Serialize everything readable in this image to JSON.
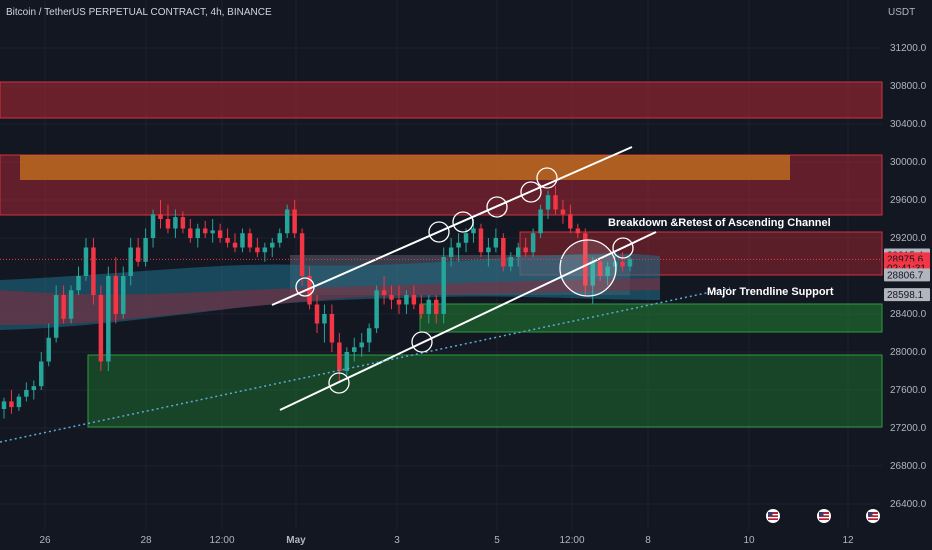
{
  "header": {
    "title": "Bitcoin / TetherUS PERPETUAL CONTRACT, 4h, BINANCE",
    "currency": "USDT"
  },
  "price_axis": {
    "ticks": [
      "31200.0",
      "30800.0",
      "30400.0",
      "30000.0",
      "29600.0",
      "29200.0",
      "28400.0",
      "28000.0",
      "27600.0",
      "27200.0",
      "26800.0",
      "26400.0"
    ]
  },
  "time_axis": {
    "ticks": [
      "26",
      "28",
      "12:00",
      "May",
      "3",
      "5",
      "12:00",
      "8",
      "10",
      "12"
    ]
  },
  "price_tags": [
    {
      "label": "29015.4",
      "value": 29015.4,
      "color": "#b2b5be"
    },
    {
      "label": "28975.6",
      "value": 28975.6,
      "color": "#f23645"
    },
    {
      "label": "02:41:31",
      "value": 28880,
      "color": "#f23645"
    },
    {
      "label": "28806.7",
      "value": 28806.7,
      "color": "#b2b5be"
    },
    {
      "label": "28598.1",
      "value": 28598.1,
      "color": "#b2b5be"
    }
  ],
  "annotations": {
    "channel_text": "Breakdown &Retest of Ascending Channel",
    "trendline_text": "Major Trendline Support"
  },
  "colors": {
    "background": "#131722",
    "up": "#26a69a",
    "down": "#f23645",
    "resistance_zone": "#b22833",
    "orange_zone": "#c8741e",
    "support_zone": "#1e6b2e",
    "channel_line": "#ffffff",
    "ribbon": "#1f6f8b"
  },
  "chart_data": {
    "type": "candlestick",
    "title": "Bitcoin / TetherUS PERPETUAL CONTRACT, 4h, BINANCE",
    "ylabel": "USDT",
    "ylim": [
      26200,
      31600
    ],
    "candles": [
      [
        27400,
        27520,
        27300,
        27480
      ],
      [
        27480,
        27600,
        27350,
        27420
      ],
      [
        27420,
        27560,
        27380,
        27530
      ],
      [
        27530,
        27680,
        27480,
        27600
      ],
      [
        27600,
        27700,
        27500,
        27640
      ],
      [
        27640,
        28000,
        27600,
        27900
      ],
      [
        27900,
        28300,
        27850,
        28150
      ],
      [
        28150,
        28700,
        28100,
        28600
      ],
      [
        28600,
        28700,
        28300,
        28350
      ],
      [
        28350,
        28700,
        28300,
        28650
      ],
      [
        28650,
        28900,
        28600,
        28800
      ],
      [
        28800,
        29200,
        28750,
        29100
      ],
      [
        29100,
        29200,
        28500,
        28600
      ],
      [
        28600,
        28700,
        27800,
        27900
      ],
      [
        27900,
        28900,
        27800,
        28800
      ],
      [
        28800,
        29000,
        28300,
        28400
      ],
      [
        28400,
        28900,
        28350,
        28800
      ],
      [
        28800,
        29200,
        28700,
        29100
      ],
      [
        29100,
        29200,
        28900,
        28950
      ],
      [
        28950,
        29300,
        28900,
        29200
      ],
      [
        29200,
        29500,
        29100,
        29450
      ],
      [
        29450,
        29600,
        29300,
        29400
      ],
      [
        29400,
        29550,
        29250,
        29300
      ],
      [
        29300,
        29500,
        29200,
        29420
      ],
      [
        29420,
        29480,
        29250,
        29300
      ],
      [
        29300,
        29400,
        29150,
        29200
      ],
      [
        29200,
        29350,
        29100,
        29300
      ],
      [
        29300,
        29380,
        29200,
        29250
      ],
      [
        29250,
        29400,
        29150,
        29280
      ],
      [
        29280,
        29350,
        29150,
        29200
      ],
      [
        29200,
        29300,
        29100,
        29150
      ],
      [
        29150,
        29250,
        29050,
        29100
      ],
      [
        29100,
        29300,
        29050,
        29250
      ],
      [
        29250,
        29300,
        29050,
        29100
      ],
      [
        29100,
        29200,
        29000,
        29050
      ],
      [
        29050,
        29150,
        28950,
        29100
      ],
      [
        29100,
        29200,
        29000,
        29150
      ],
      [
        29150,
        29300,
        29100,
        29250
      ],
      [
        29250,
        29550,
        29200,
        29500
      ],
      [
        29500,
        29600,
        29200,
        29250
      ],
      [
        29250,
        29300,
        28700,
        28800
      ],
      [
        28800,
        28900,
        28450,
        28500
      ],
      [
        28500,
        28600,
        28200,
        28300
      ],
      [
        28300,
        28500,
        28100,
        28400
      ],
      [
        28400,
        28500,
        28000,
        28100
      ],
      [
        28100,
        28200,
        27700,
        27800
      ],
      [
        27800,
        28050,
        27750,
        28000
      ],
      [
        28000,
        28150,
        27900,
        28050
      ],
      [
        28050,
        28200,
        27950,
        28100
      ],
      [
        28100,
        28300,
        28000,
        28250
      ],
      [
        28250,
        28700,
        28200,
        28650
      ],
      [
        28650,
        28800,
        28500,
        28600
      ],
      [
        28600,
        28700,
        28450,
        28550
      ],
      [
        28550,
        28700,
        28400,
        28500
      ],
      [
        28500,
        28650,
        28400,
        28600
      ],
      [
        28600,
        28700,
        28450,
        28500
      ],
      [
        28500,
        28600,
        28350,
        28400
      ],
      [
        28400,
        28600,
        28300,
        28550
      ],
      [
        28550,
        28600,
        28300,
        28400
      ],
      [
        28400,
        29100,
        28300,
        29000
      ],
      [
        29000,
        29200,
        28900,
        29100
      ],
      [
        29100,
        29250,
        28950,
        29150
      ],
      [
        29150,
        29300,
        29050,
        29250
      ],
      [
        29250,
        29400,
        29150,
        29300
      ],
      [
        29300,
        29350,
        29000,
        29050
      ],
      [
        29050,
        29200,
        28900,
        29100
      ],
      [
        29100,
        29300,
        29050,
        29200
      ],
      [
        29200,
        29250,
        28850,
        28900
      ],
      [
        28900,
        29050,
        28850,
        29000
      ],
      [
        29000,
        29150,
        28900,
        29100
      ],
      [
        29100,
        29200,
        29000,
        29050
      ],
      [
        29050,
        29300,
        29000,
        29250
      ],
      [
        29250,
        29550,
        29200,
        29500
      ],
      [
        29500,
        29700,
        29400,
        29650
      ],
      [
        29650,
        29750,
        29450,
        29500
      ],
      [
        29500,
        29600,
        29350,
        29450
      ],
      [
        29450,
        29550,
        29250,
        29300
      ],
      [
        29300,
        29350,
        29200,
        29250
      ],
      [
        29250,
        29300,
        28600,
        28700
      ],
      [
        28700,
        29000,
        28500,
        28950
      ],
      [
        28950,
        29000,
        28750,
        28800
      ],
      [
        28800,
        28950,
        28700,
        28900
      ],
      [
        28900,
        29050,
        28800,
        28950
      ],
      [
        28950,
        29050,
        28850,
        28900
      ],
      [
        28900,
        29000,
        28850,
        28980
      ]
    ],
    "zones": [
      {
        "name": "resistance-upper",
        "y0": 30480,
        "y1": 30850
      },
      {
        "name": "resistance-mid",
        "y0": 29450,
        "y1": 30060
      },
      {
        "name": "orange-box",
        "y0": 29830,
        "y1": 30060
      },
      {
        "name": "resistance-right",
        "y0": 28870,
        "y1": 29300
      },
      {
        "name": "support-upper",
        "y0": 28230,
        "y1": 28490
      },
      {
        "name": "support-lower",
        "y0": 27200,
        "y1": 27960
      }
    ],
    "trendlines": [
      {
        "name": "channel-upper",
        "x1": "29 Apr",
        "y1": 28530,
        "x2": "7 May",
        "y2": 30180
      },
      {
        "name": "channel-lower",
        "x1": "30 Apr",
        "y1": 27380,
        "x2": "7 May",
        "y2": 29300
      },
      {
        "name": "major-trendline",
        "x1": "25 Apr",
        "y1": 27050,
        "x2": "7 May",
        "y2": 28600
      }
    ]
  }
}
